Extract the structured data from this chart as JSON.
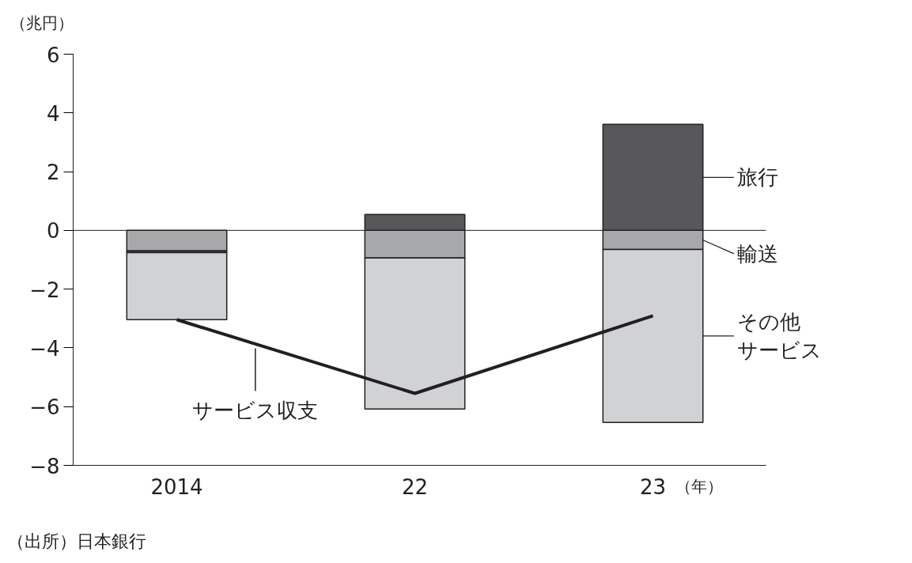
{
  "chart_data": {
    "type": "bar",
    "stacked": true,
    "ylabel": "（兆円）",
    "xlabel": "（年）",
    "categories": [
      "2014",
      "22",
      "23"
    ],
    "series": [
      {
        "name": "輸送",
        "color": "#a7a8aa",
        "values": [
          -0.7,
          -0.94,
          -0.65
        ]
      },
      {
        "name": "旅行",
        "color": "#58585a",
        "values": [
          -0.06,
          0.54,
          3.61
        ]
      },
      {
        "name": "その他サービス",
        "color": "#d1d2d4",
        "values": [
          -2.28,
          -5.14,
          -5.89
        ]
      },
      {
        "name": "サービス収支",
        "type": "line",
        "color": "#231f20",
        "values": [
          -3.04,
          -5.55,
          -2.91
        ]
      }
    ],
    "ylim": [
      -8,
      6
    ],
    "yticks": [
      6,
      4,
      2,
      0,
      {
        "value": -2,
        "label": "−2"
      },
      {
        "value": -4,
        "label": "−4"
      },
      {
        "value": -6,
        "label": "−6"
      },
      {
        "value": -8,
        "label": "−8"
      }
    ],
    "ref_lines": [
      {
        "axis": "y",
        "value": 0
      }
    ],
    "grid": false,
    "legend": "right",
    "annotations": [
      "（出所）日本銀行"
    ]
  }
}
